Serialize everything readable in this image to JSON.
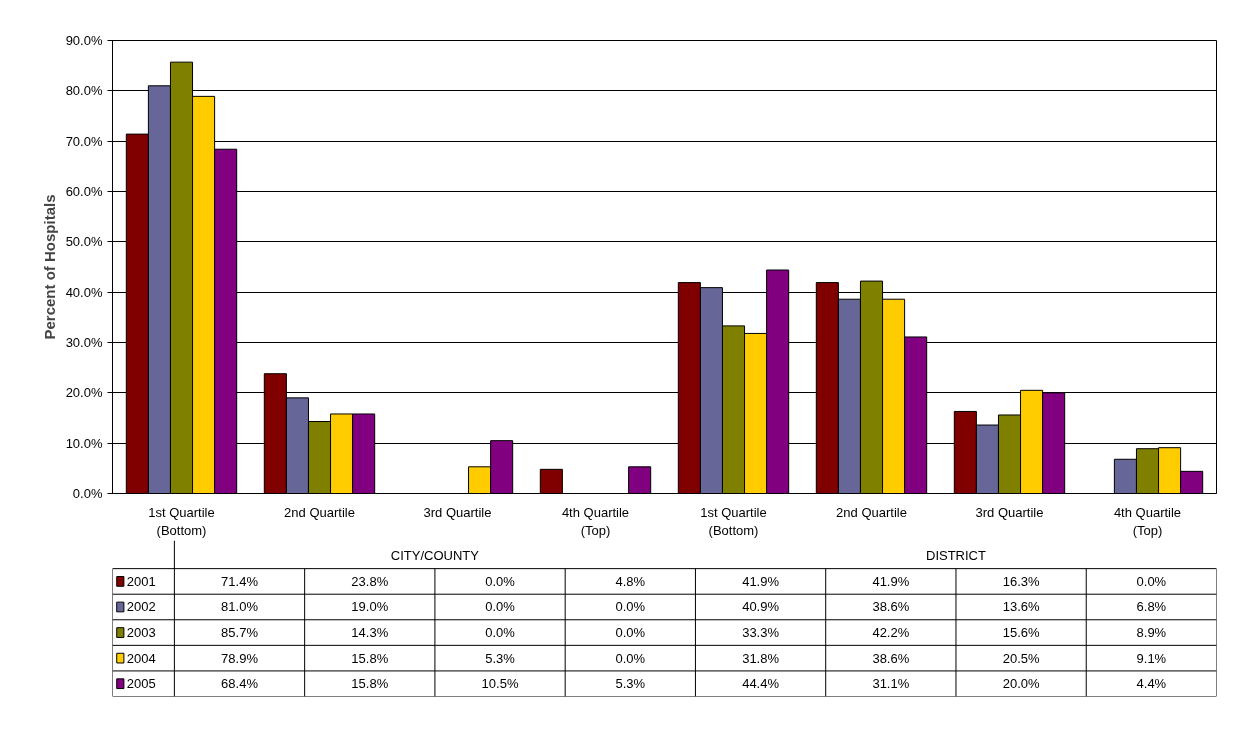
{
  "chart_data": {
    "type": "bar",
    "ylabel": "Percent of Hospitals",
    "categories": [
      "1st Quartile\n(Bottom)",
      "2nd Quartile",
      "3rd Quartile",
      "4th Quartile\n(Top)",
      "1st Quartile\n(Bottom)",
      "2nd Quartile",
      "3rd Quartile",
      "4th Quartile\n(Top)"
    ],
    "annotations": [
      "CITY/COUNTY",
      "DISTRICT"
    ],
    "series": [
      {
        "name": "2001",
        "color": "#800000",
        "values": [
          71.4,
          23.8,
          0.0,
          4.8,
          41.9,
          41.9,
          16.3,
          0.0
        ],
        "value_labels": [
          "71.4%",
          "23.8%",
          "0.0%",
          "4.8%",
          "41.9%",
          "41.9%",
          "16.3%",
          "0.0%"
        ]
      },
      {
        "name": "2002",
        "color": "#666699",
        "values": [
          81.0,
          19.0,
          0.0,
          0.0,
          40.9,
          38.6,
          13.6,
          6.8
        ],
        "value_labels": [
          "81.0%",
          "19.0%",
          "0.0%",
          "0.0%",
          "40.9%",
          "38.6%",
          "13.6%",
          "6.8%"
        ]
      },
      {
        "name": "2003",
        "color": "#808000",
        "values": [
          85.7,
          14.3,
          0.0,
          0.0,
          33.3,
          42.2,
          15.6,
          8.9
        ],
        "value_labels": [
          "85.7%",
          "14.3%",
          "0.0%",
          "0.0%",
          "33.3%",
          "42.2%",
          "15.6%",
          "8.9%"
        ]
      },
      {
        "name": "2004",
        "color": "#ffcc00",
        "values": [
          78.9,
          15.8,
          5.3,
          0.0,
          31.8,
          38.6,
          20.5,
          9.1
        ],
        "value_labels": [
          "78.9%",
          "15.8%",
          "5.3%",
          "0.0%",
          "31.8%",
          "38.6%",
          "20.5%",
          "9.1%"
        ]
      },
      {
        "name": "2005",
        "color": "#800080",
        "values": [
          68.4,
          15.8,
          10.5,
          5.3,
          44.4,
          31.1,
          20.0,
          4.4
        ],
        "value_labels": [
          "68.4%",
          "15.8%",
          "10.5%",
          "5.3%",
          "44.4%",
          "31.1%",
          "20.0%",
          "4.4%"
        ]
      }
    ],
    "ylim": [
      0,
      90
    ],
    "yticks": [
      {
        "value": 0,
        "label": "0.0%"
      },
      {
        "value": 10,
        "label": "10.0%"
      },
      {
        "value": 20,
        "label": "20.0%"
      },
      {
        "value": 30,
        "label": "30.0%"
      },
      {
        "value": 40,
        "label": "40.0%"
      },
      {
        "value": 50,
        "label": "50.0%"
      },
      {
        "value": 60,
        "label": "60.0%"
      },
      {
        "value": 70,
        "label": "70.0%"
      },
      {
        "value": 80,
        "label": "80.0%"
      },
      {
        "value": 90,
        "label": "90.0%"
      }
    ],
    "grid": "y",
    "legend": "bottom left"
  }
}
